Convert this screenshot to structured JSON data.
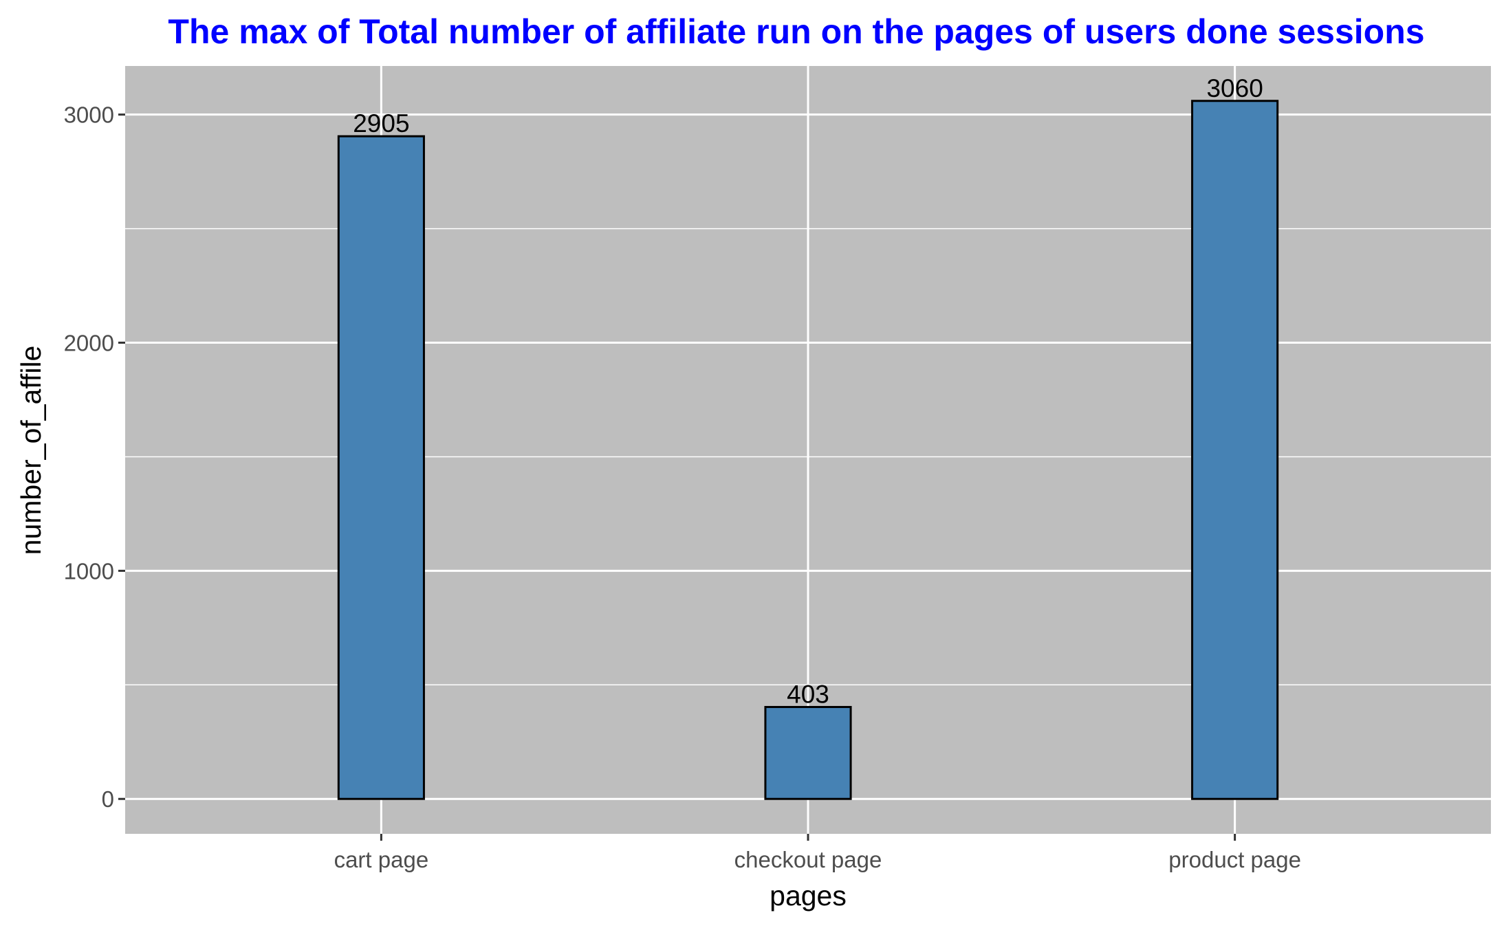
{
  "chart_data": {
    "type": "bar",
    "title": "The max of Total number of affiliate run on the pages of users done sessions",
    "xlabel": "pages",
    "ylabel": "number_of_affile",
    "categories": [
      "cart page",
      "checkout page",
      "product page"
    ],
    "values": [
      2905,
      403,
      3060
    ],
    "data_labels": [
      "2905",
      "403",
      "3060"
    ],
    "ylim": [
      -153,
      3213
    ],
    "yticks": [
      0,
      1000,
      2000,
      3000
    ],
    "ytick_labels": [
      "0",
      "1000",
      "2000",
      "3000"
    ],
    "grid": true,
    "legend": "none",
    "colors": {
      "bar_fill": "#4682b4",
      "bar_stroke": "#000000",
      "panel_background": "#bebebe",
      "grid": "#ffffff",
      "title": "#0000ff"
    }
  }
}
